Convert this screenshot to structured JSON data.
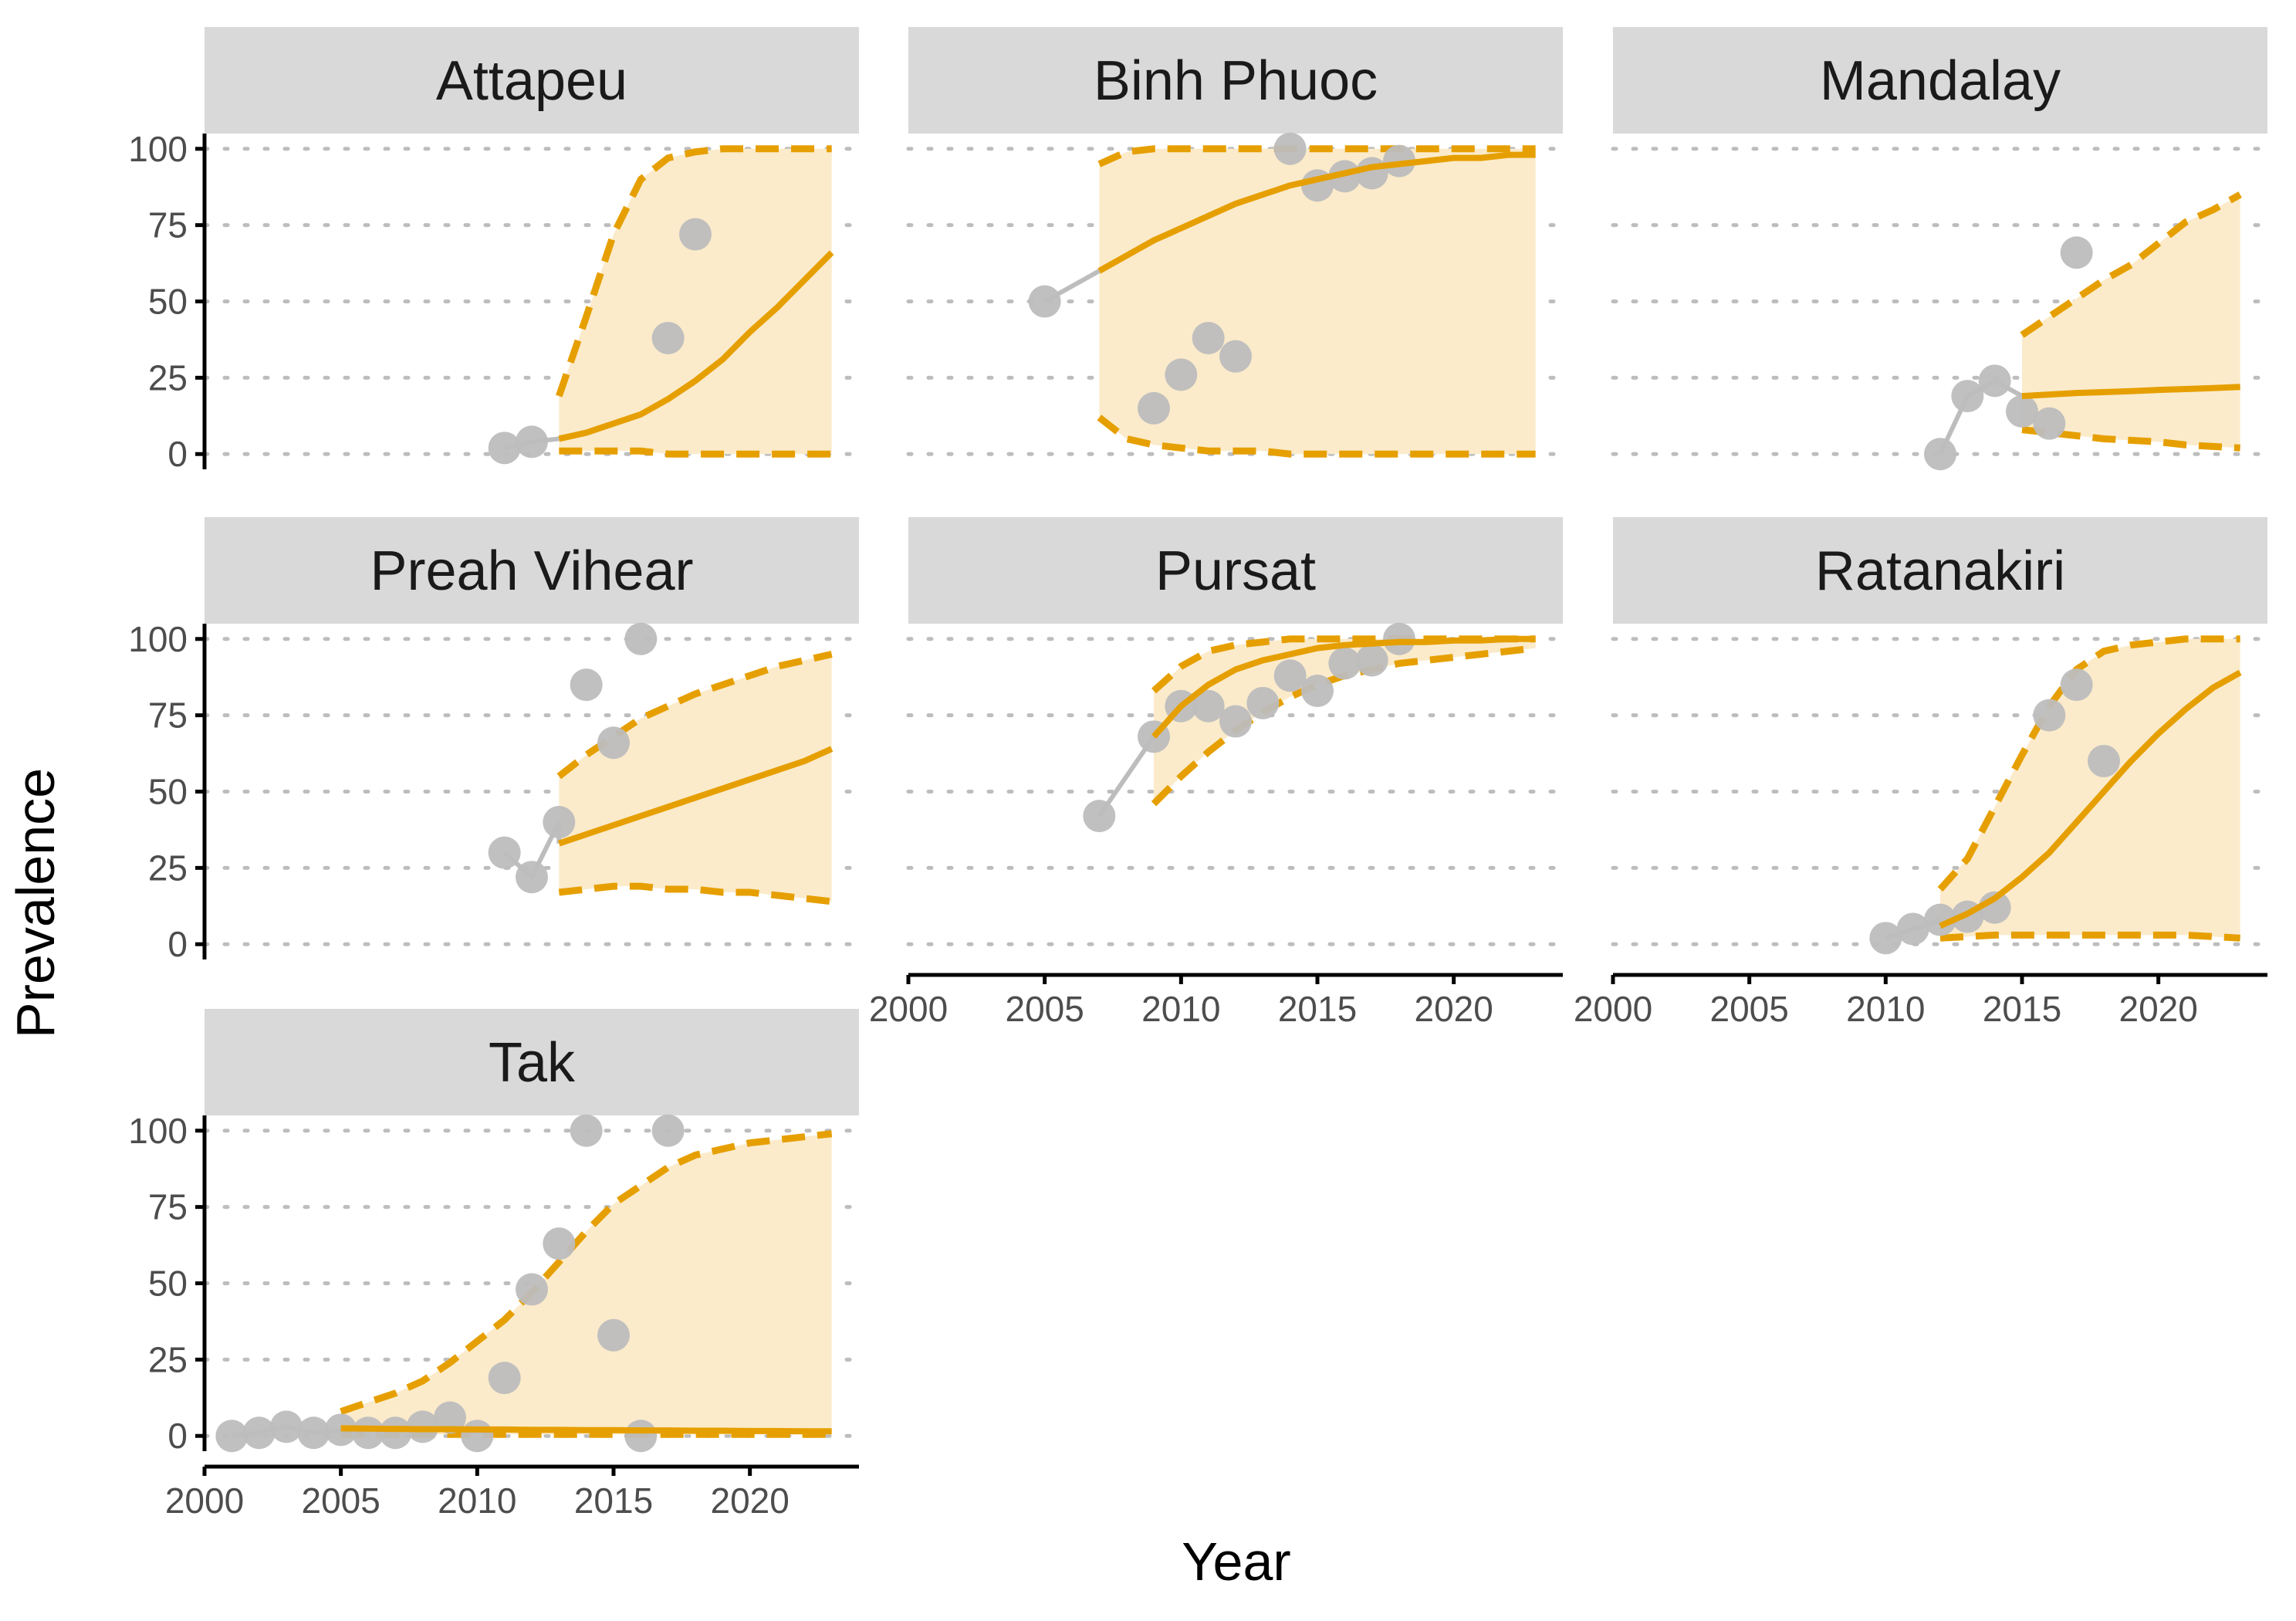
{
  "chart_data": {
    "type": "line",
    "xlabel": "Year",
    "ylabel": "Prevalence",
    "xlim": [
      2000,
      2024
    ],
    "ylim": [
      -5,
      105
    ],
    "xticks": [
      2000,
      2005,
      2010,
      2015,
      2020
    ],
    "yticks": [
      0,
      25,
      50,
      75,
      100
    ],
    "grid": "horizontal dotted",
    "legend": "none",
    "colors": {
      "ribbon": "#fbebcb",
      "model": "#e69f00",
      "observed": "#bdbdbd"
    },
    "panels": [
      {
        "name": "Attapeu",
        "observed": [
          [
            2011,
            2
          ],
          [
            2012,
            4
          ]
        ],
        "model": {
          "x": [
            2013,
            2014,
            2015,
            2016,
            2017,
            2018,
            2019,
            2020,
            2021,
            2022,
            2023
          ],
          "mid": [
            5,
            7,
            10,
            13,
            18,
            24,
            31,
            40,
            48,
            57,
            66
          ],
          "lo": [
            1,
            1,
            1,
            1,
            0,
            0,
            0,
            0,
            0,
            0,
            0
          ],
          "hi": [
            19,
            45,
            72,
            90,
            97,
            99,
            100,
            100,
            100,
            100,
            100
          ]
        },
        "extra_points": [
          [
            2017,
            38
          ],
          [
            2018,
            72
          ]
        ]
      },
      {
        "name": "Binh Phuoc",
        "observed": [
          [
            2005,
            50
          ]
        ],
        "model": {
          "x": [
            2007,
            2008,
            2009,
            2010,
            2011,
            2012,
            2013,
            2014,
            2015,
            2016,
            2017,
            2018,
            2019,
            2020,
            2021,
            2022,
            2023
          ],
          "mid": [
            60,
            65,
            70,
            74,
            78,
            82,
            85,
            88,
            90,
            92,
            94,
            95,
            96,
            97,
            97,
            98,
            98
          ],
          "lo": [
            12,
            5,
            3,
            2,
            1,
            1,
            1,
            0,
            0,
            0,
            0,
            0,
            0,
            0,
            0,
            0,
            0
          ],
          "hi": [
            95,
            99,
            100,
            100,
            100,
            100,
            100,
            100,
            100,
            100,
            100,
            100,
            100,
            100,
            100,
            100,
            100
          ]
        },
        "extra_points": [
          [
            2009,
            15
          ],
          [
            2010,
            26
          ],
          [
            2011,
            38
          ],
          [
            2012,
            32
          ],
          [
            2014,
            100
          ],
          [
            2015,
            88
          ],
          [
            2016,
            91
          ],
          [
            2017,
            92
          ],
          [
            2018,
            96
          ]
        ]
      },
      {
        "name": "Mandalay",
        "observed": [
          [
            2012,
            0
          ],
          [
            2013,
            19
          ],
          [
            2014,
            24
          ]
        ],
        "model": {
          "x": [
            2015,
            2016,
            2017,
            2018,
            2019,
            2020,
            2021,
            2022,
            2023
          ],
          "mid": [
            19,
            19.5,
            20,
            20.3,
            20.6,
            21,
            21.3,
            21.6,
            22
          ],
          "lo": [
            8,
            7,
            6,
            5,
            4.5,
            4,
            3,
            2.5,
            2
          ],
          "hi": [
            39,
            45,
            51,
            57,
            62,
            69,
            76,
            80,
            85
          ]
        },
        "extra_points": [
          [
            2015,
            14
          ],
          [
            2016,
            10
          ],
          [
            2017,
            66
          ]
        ]
      },
      {
        "name": "Preah Vihear",
        "observed": [
          [
            2011,
            30
          ],
          [
            2012,
            22
          ],
          [
            2013,
            40
          ]
        ],
        "model": {
          "x": [
            2013,
            2014,
            2015,
            2016,
            2017,
            2018,
            2019,
            2020,
            2021,
            2022,
            2023
          ],
          "mid": [
            33,
            36,
            39,
            42,
            45,
            48,
            51,
            54,
            57,
            60,
            64
          ],
          "lo": [
            17,
            18,
            19,
            19,
            18,
            18,
            17,
            17,
            16,
            15,
            14
          ],
          "hi": [
            55,
            62,
            68,
            74,
            78,
            82,
            85,
            88,
            91,
            93,
            95
          ]
        },
        "extra_points": [
          [
            2014,
            85
          ],
          [
            2015,
            66
          ],
          [
            2016,
            100
          ]
        ]
      },
      {
        "name": "Pursat",
        "observed": [
          [
            2007,
            42
          ],
          [
            2009,
            68
          ]
        ],
        "model": {
          "x": [
            2009,
            2010,
            2011,
            2012,
            2013,
            2014,
            2015,
            2016,
            2017,
            2018,
            2019,
            2020,
            2021,
            2022,
            2023
          ],
          "mid": [
            68,
            78,
            85,
            90,
            93,
            95,
            97,
            98,
            98.5,
            99,
            99,
            99.5,
            99.5,
            100,
            100
          ],
          "lo": [
            46,
            55,
            63,
            70,
            76,
            81,
            85,
            88,
            90,
            92,
            93,
            94,
            95,
            96,
            97
          ],
          "hi": [
            83,
            91,
            96,
            98,
            99,
            100,
            100,
            100,
            100,
            100,
            100,
            100,
            100,
            100,
            100
          ]
        },
        "extra_points": [
          [
            2010,
            78
          ],
          [
            2011,
            78
          ],
          [
            2012,
            73
          ],
          [
            2013,
            79
          ],
          [
            2014,
            88
          ],
          [
            2015,
            83
          ],
          [
            2016,
            92
          ],
          [
            2017,
            93
          ],
          [
            2018,
            100
          ]
        ]
      },
      {
        "name": "Ratanakiri",
        "observed": [
          [
            2010,
            2
          ],
          [
            2011,
            5
          ],
          [
            2012,
            8
          ]
        ],
        "model": {
          "x": [
            2012,
            2013,
            2014,
            2015,
            2016,
            2017,
            2018,
            2019,
            2020,
            2021,
            2022,
            2023
          ],
          "mid": [
            6,
            10,
            15,
            22,
            30,
            40,
            50,
            60,
            69,
            77,
            84,
            89
          ],
          "lo": [
            2,
            2.5,
            3,
            3,
            3,
            3,
            3,
            3,
            3,
            3,
            2.5,
            2
          ],
          "hi": [
            18,
            28,
            45,
            62,
            78,
            90,
            96,
            98,
            99,
            100,
            100,
            100
          ]
        },
        "extra_points": [
          [
            2013,
            9
          ],
          [
            2014,
            12
          ],
          [
            2016,
            75
          ],
          [
            2017,
            85
          ],
          [
            2018,
            60
          ]
        ]
      },
      {
        "name": "Tak",
        "observed": [
          [
            2001,
            0
          ],
          [
            2002,
            1
          ],
          [
            2003,
            3
          ],
          [
            2004,
            1
          ],
          [
            2005,
            2
          ]
        ],
        "model": {
          "x": [
            2005,
            2006,
            2007,
            2008,
            2009,
            2010,
            2011,
            2012,
            2013,
            2014,
            2015,
            2016,
            2017,
            2018,
            2019,
            2020,
            2021,
            2022,
            2023
          ],
          "mid": [
            2.5,
            2.4,
            2.3,
            2.2,
            2.2,
            2.1,
            2.1,
            2.0,
            2.0,
            1.9,
            1.9,
            1.8,
            1.8,
            1.7,
            1.7,
            1.6,
            1.6,
            1.5,
            1.5
          ],
          "lo": [
            0.5,
            0.5,
            0.5,
            0.5,
            0.5,
            0.5,
            0.5,
            0.5,
            0.5,
            0.5,
            0.5,
            0.5,
            0.5,
            0.5,
            0.5,
            0.5,
            0.5,
            0.5,
            0.5
          ],
          "hi": [
            8,
            11,
            14,
            18,
            24,
            31,
            38,
            47,
            57,
            67,
            76,
            82,
            88,
            92,
            94,
            96,
            97,
            98,
            99
          ]
        },
        "extra_points": [
          [
            2006,
            1
          ],
          [
            2007,
            1
          ],
          [
            2008,
            3
          ],
          [
            2009,
            6
          ],
          [
            2010,
            0
          ],
          [
            2011,
            19
          ],
          [
            2012,
            48
          ],
          [
            2013,
            63
          ],
          [
            2014,
            100
          ],
          [
            2015,
            33
          ],
          [
            2016,
            0
          ],
          [
            2017,
            100
          ]
        ]
      }
    ]
  }
}
